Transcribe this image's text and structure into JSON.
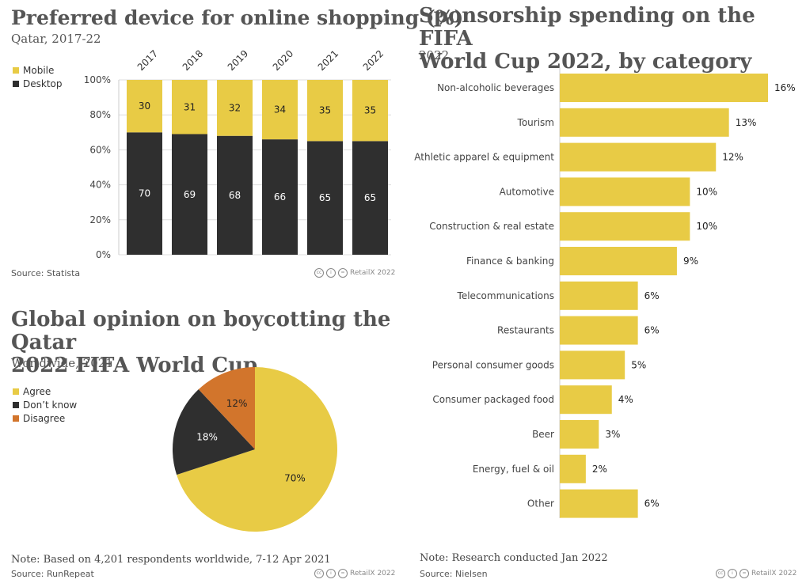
{
  "colors": {
    "mobile": "#e8cb45",
    "desktop": "#2f2f2f",
    "agree": "#e8cb45",
    "dontknow": "#2f2f2f",
    "disagree": "#d2752c",
    "bar": "#e8cb45"
  },
  "chart_data": [
    {
      "type": "bar",
      "title": "Preferred device for online shopping (%)",
      "subtitle": "Qatar, 2017-22",
      "categories": [
        "2017",
        "2018",
        "2019",
        "2020",
        "2021",
        "2022"
      ],
      "series": [
        {
          "name": "Desktop",
          "values": [
            70,
            69,
            68,
            66,
            65,
            65
          ]
        },
        {
          "name": "Mobile",
          "values": [
            30,
            31,
            32,
            34,
            35,
            35
          ]
        }
      ],
      "ylim": [
        0,
        100
      ],
      "yticks": [
        "0%",
        "20%",
        "40%",
        "60%",
        "80%",
        "100%"
      ],
      "legend": [
        "Mobile",
        "Desktop"
      ],
      "source": "Source: Statista",
      "credit": "RetailX 2022"
    },
    {
      "type": "pie",
      "title": "Global opinion on boycotting the Qatar 2022 FIFA World Cup",
      "title_lines": [
        "Global opinion on boycotting the Qatar",
        "2022 FIFA World Cup"
      ],
      "subtitle": "Worldwide, 2021",
      "labels": [
        "Agree",
        "Don't know",
        "Disagree"
      ],
      "legend": [
        "Agree",
        "Don’t know",
        "Disagree"
      ],
      "values": [
        70,
        18,
        12
      ],
      "value_labels": [
        "70%",
        "18%",
        "12%"
      ],
      "note": "Note: Based on 4,201 respondents worldwide, 7-12 Apr 2021",
      "source": "Source: RunRepeat",
      "credit": "RetailX 2022"
    },
    {
      "type": "bar",
      "orientation": "horizontal",
      "title": "Sponsorship spending on the FIFA World Cup 2022, by category",
      "title_lines": [
        "Sponsorship spending on the FIFA",
        "World Cup 2022, by category"
      ],
      "subtitle": "2022",
      "categories": [
        "Non-alcoholic beverages",
        "Tourism",
        "Athletic apparel & equipment",
        "Automotive",
        "Construction & real estate",
        "Finance & banking",
        "Telecommunications",
        "Restaurants",
        "Personal consumer goods",
        "Consumer packaged food",
        "Beer",
        "Energy, fuel & oil",
        "Other"
      ],
      "values": [
        16,
        13,
        12,
        10,
        10,
        9,
        6,
        6,
        5,
        4,
        3,
        2,
        6
      ],
      "value_labels": [
        "16%",
        "13%",
        "12%",
        "10%",
        "10%",
        "9%",
        "6%",
        "6%",
        "5%",
        "4%",
        "3%",
        "2%",
        "6%"
      ],
      "note": "Note: Research conducted Jan 2022",
      "source": "Source: Nielsen",
      "credit": "RetailX 2022"
    }
  ]
}
